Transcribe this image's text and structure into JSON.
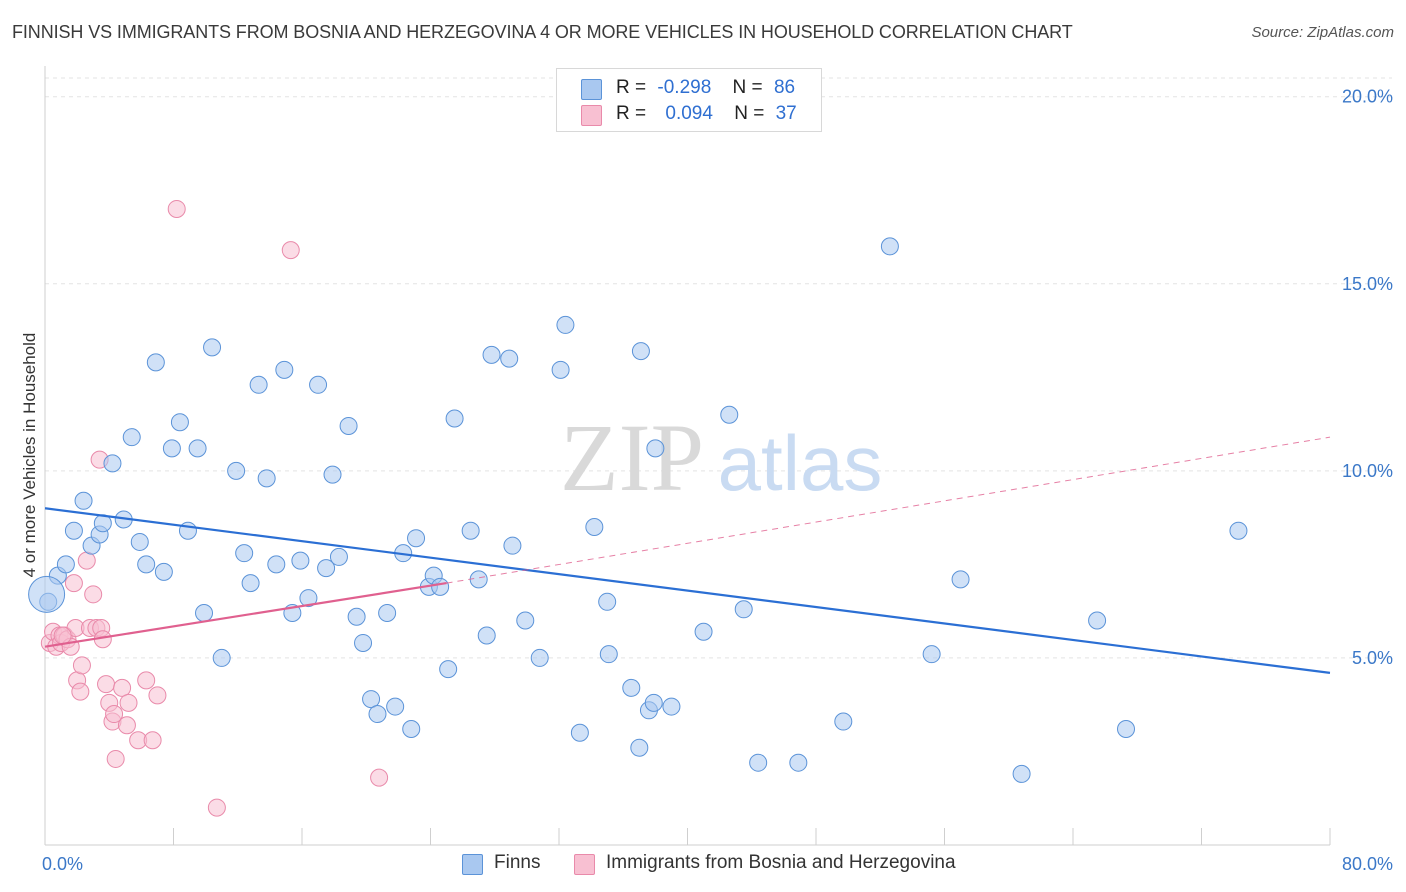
{
  "title": "FINNISH VS IMMIGRANTS FROM BOSNIA AND HERZEGOVINA 4 OR MORE VEHICLES IN HOUSEHOLD CORRELATION CHART",
  "source": "Source: ZipAtlas.com",
  "watermark": {
    "zip": "ZIP",
    "atlas": "atlas"
  },
  "legend": {
    "rows": [
      {
        "r_label": "R =",
        "r_value": "-0.298",
        "n_label": "N =",
        "n_value": "86"
      },
      {
        "r_label": "R =",
        "r_value": "0.094",
        "n_label": "N =",
        "n_value": "37"
      }
    ]
  },
  "bottom_legend": [
    "Finns",
    "Immigrants from Bosnia and Herzegovina"
  ],
  "colors": {
    "finns_fill": "#a9c8f0",
    "finns_stroke": "#5b93d8",
    "finns_line": "#2b6fd4",
    "bosnia_fill": "#f8c0d2",
    "bosnia_stroke": "#e98aaa",
    "bosnia_line": "#e0608f",
    "axis_label": "#3b78c8"
  },
  "chart_data": {
    "type": "scatter",
    "title": "FINNISH VS IMMIGRANTS FROM BOSNIA AND HERZEGOVINA 4 OR MORE VEHICLES IN HOUSEHOLD CORRELATION CHART",
    "xlabel": "",
    "ylabel": "4 or more Vehicles in Household",
    "xlim": [
      0,
      80
    ],
    "ylim": [
      0,
      20.5
    ],
    "x_tick_labels": [
      "0.0%",
      "80.0%"
    ],
    "y_ticks": [
      5,
      10,
      15,
      20
    ],
    "y_tick_labels": [
      "5.0%",
      "10.0%",
      "15.0%",
      "20.0%"
    ],
    "grid": true,
    "legend_position": "top-center",
    "series": [
      {
        "name": "Finns",
        "points": [
          [
            0.2,
            6.5
          ],
          [
            0.8,
            7.2
          ],
          [
            1.3,
            7.5
          ],
          [
            1.8,
            8.4
          ],
          [
            2.4,
            9.2
          ],
          [
            2.9,
            8.0
          ],
          [
            3.4,
            8.3
          ],
          [
            3.6,
            8.6
          ],
          [
            4.2,
            10.2
          ],
          [
            4.9,
            8.7
          ],
          [
            5.4,
            10.9
          ],
          [
            5.9,
            8.1
          ],
          [
            6.3,
            7.5
          ],
          [
            6.9,
            12.9
          ],
          [
            7.4,
            7.3
          ],
          [
            7.9,
            10.6
          ],
          [
            8.4,
            11.3
          ],
          [
            8.9,
            8.4
          ],
          [
            9.5,
            10.6
          ],
          [
            9.9,
            6.2
          ],
          [
            10.4,
            13.3
          ],
          [
            11.0,
            5.0
          ],
          [
            11.9,
            10.0
          ],
          [
            12.4,
            7.8
          ],
          [
            12.8,
            7.0
          ],
          [
            13.3,
            12.3
          ],
          [
            13.8,
            9.8
          ],
          [
            14.4,
            7.5
          ],
          [
            14.9,
            12.7
          ],
          [
            15.4,
            6.2
          ],
          [
            15.9,
            7.6
          ],
          [
            16.4,
            6.6
          ],
          [
            17.0,
            12.3
          ],
          [
            17.5,
            7.4
          ],
          [
            17.9,
            9.9
          ],
          [
            18.3,
            7.7
          ],
          [
            18.9,
            11.2
          ],
          [
            19.4,
            6.1
          ],
          [
            19.8,
            5.4
          ],
          [
            20.3,
            3.9
          ],
          [
            20.7,
            3.5
          ],
          [
            21.3,
            6.2
          ],
          [
            21.8,
            3.7
          ],
          [
            22.3,
            7.8
          ],
          [
            22.8,
            3.1
          ],
          [
            23.1,
            8.2
          ],
          [
            23.9,
            6.9
          ],
          [
            24.2,
            7.2
          ],
          [
            24.6,
            6.9
          ],
          [
            25.1,
            4.7
          ],
          [
            25.5,
            11.4
          ],
          [
            26.5,
            8.4
          ],
          [
            27.0,
            7.1
          ],
          [
            27.5,
            5.6
          ],
          [
            27.8,
            13.1
          ],
          [
            28.9,
            13.0
          ],
          [
            29.1,
            8.0
          ],
          [
            29.9,
            6.0
          ],
          [
            30.8,
            5.0
          ],
          [
            32.1,
            12.7
          ],
          [
            32.4,
            13.9
          ],
          [
            33.3,
            3.0
          ],
          [
            34.2,
            8.5
          ],
          [
            35.0,
            6.5
          ],
          [
            35.1,
            5.1
          ],
          [
            36.5,
            4.2
          ],
          [
            37.0,
            2.6
          ],
          [
            37.1,
            13.2
          ],
          [
            37.6,
            3.6
          ],
          [
            37.9,
            3.8
          ],
          [
            38.0,
            10.6
          ],
          [
            39.0,
            3.7
          ],
          [
            41.0,
            5.7
          ],
          [
            42.6,
            11.5
          ],
          [
            43.5,
            6.3
          ],
          [
            44.4,
            2.2
          ],
          [
            46.9,
            2.2
          ],
          [
            49.7,
            3.3
          ],
          [
            52.6,
            16.0
          ],
          [
            55.2,
            5.1
          ],
          [
            57.0,
            7.1
          ],
          [
            60.8,
            1.9
          ],
          [
            65.5,
            6.0
          ],
          [
            67.3,
            3.1
          ],
          [
            74.3,
            8.4
          ],
          [
            0.1,
            6.7
          ]
        ]
      },
      {
        "name": "Immigrants from Bosnia and Herzegovina",
        "points": [
          [
            0.3,
            5.4
          ],
          [
            0.5,
            5.7
          ],
          [
            0.7,
            5.3
          ],
          [
            0.9,
            5.6
          ],
          [
            1.0,
            5.4
          ],
          [
            1.2,
            5.6
          ],
          [
            1.4,
            5.5
          ],
          [
            1.6,
            5.3
          ],
          [
            1.8,
            7.0
          ],
          [
            1.9,
            5.8
          ],
          [
            2.0,
            4.4
          ],
          [
            2.2,
            4.1
          ],
          [
            2.3,
            4.8
          ],
          [
            2.6,
            7.6
          ],
          [
            2.8,
            5.8
          ],
          [
            3.0,
            6.7
          ],
          [
            3.2,
            5.8
          ],
          [
            3.4,
            10.3
          ],
          [
            3.5,
            5.8
          ],
          [
            3.6,
            5.5
          ],
          [
            3.8,
            4.3
          ],
          [
            4.0,
            3.8
          ],
          [
            4.2,
            3.3
          ],
          [
            4.3,
            3.5
          ],
          [
            4.4,
            2.3
          ],
          [
            4.8,
            4.2
          ],
          [
            5.1,
            3.2
          ],
          [
            5.2,
            3.8
          ],
          [
            5.8,
            2.8
          ],
          [
            6.3,
            4.4
          ],
          [
            6.7,
            2.8
          ],
          [
            7.0,
            4.0
          ],
          [
            8.2,
            17.0
          ],
          [
            10.7,
            1.0
          ],
          [
            15.3,
            15.9
          ],
          [
            20.8,
            1.8
          ],
          [
            1.1,
            5.6
          ]
        ]
      }
    ],
    "trend_lines": [
      {
        "name": "Finns",
        "x": [
          0,
          80
        ],
        "y": [
          9.0,
          4.6
        ]
      },
      {
        "name": "Immigrants from Bosnia and Herzegovina",
        "x": [
          0,
          25
        ],
        "y": [
          5.3,
          7.0
        ],
        "dashed_extension": {
          "x": [
            25,
            80
          ],
          "y": [
            7.0,
            10.9
          ]
        }
      }
    ]
  }
}
